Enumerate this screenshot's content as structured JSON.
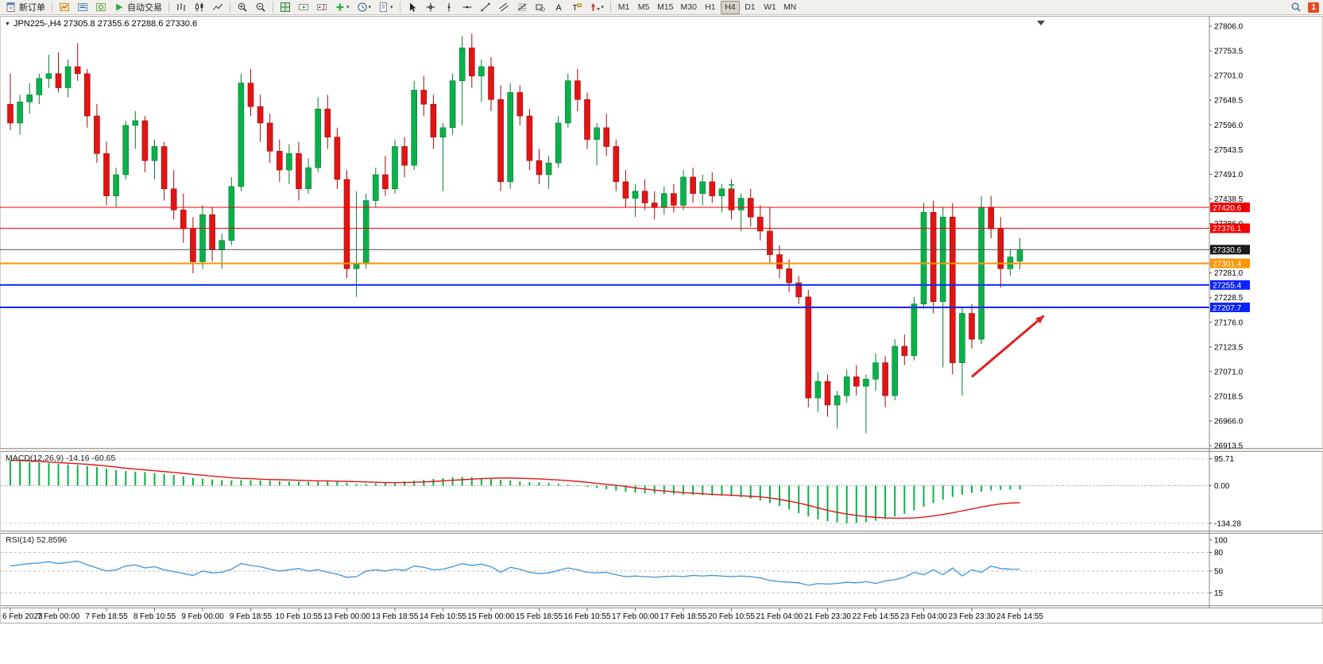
{
  "toolbar": {
    "new_order_label": "新订单",
    "auto_trading_label": "自动交易",
    "panel_icons": [
      "charts",
      "market-watch",
      "navigator"
    ],
    "chart_type_icons": [
      "bar-chart",
      "candlestick-chart",
      "line-chart"
    ],
    "zoom_icons": [
      "zoom-in",
      "zoom-out"
    ],
    "window_icons": [
      "tile-windows",
      "auto-scroll",
      "chart-shift",
      "add-indicator",
      "periods",
      "templates"
    ],
    "drawing_icons": [
      "cursor",
      "crosshair",
      "vertical-line",
      "horizontal-line",
      "trendline",
      "equidistant-channel",
      "fibonacci",
      "shapes",
      "text",
      "text-label",
      "arrows"
    ],
    "dropdown_icons": [
      "add-indicator",
      "periods",
      "templates",
      "arrows"
    ],
    "timeframes": [
      "M1",
      "M5",
      "M15",
      "M30",
      "H1",
      "H4",
      "D1",
      "W1",
      "MN"
    ],
    "active_timeframe": "H4",
    "right_icons": [
      "search"
    ],
    "notification_count": "1"
  },
  "chart_data": {
    "type": "candlestick",
    "symbol": "JPN225-",
    "timeframe": "H4",
    "title_text": "JPN225-,H4 27305.8 27355.6 27288.6 27330.6",
    "ohlc": {
      "open": 27305.8,
      "high": 27355.6,
      "low": 27288.6,
      "close": 27330.6
    },
    "price_axis_ticks": [
      "27806.0",
      "27753.5",
      "27701.0",
      "27648.5",
      "27596.0",
      "27543.5",
      "27491.0",
      "27438.5",
      "27386.0",
      "27333.5",
      "27281.0",
      "27228.5",
      "27176.0",
      "27123.5",
      "27071.0",
      "27018.5",
      "26966.0",
      "26913.5"
    ],
    "time_axis_labels": [
      "6 Feb 2023",
      "7 Feb 00:00",
      "7 Feb 18:55",
      "8 Feb 10:55",
      "9 Feb 00:00",
      "9 Feb 18:55",
      "10 Feb 10:55",
      "13 Feb 00:00",
      "13 Feb 18:55",
      "14 Feb 10:55",
      "15 Feb 00:00",
      "15 Feb 18:55",
      "16 Feb 10:55",
      "17 Feb 00:00",
      "17 Feb 18:55",
      "20 Feb 10:55",
      "21 Feb 04:00",
      "21 Feb 23:30",
      "22 Feb 14:55",
      "23 Feb 04:00",
      "23 Feb 23:30",
      "24 Feb 14:55"
    ],
    "hlines": [
      {
        "price": 27420.6,
        "label": "27420.6",
        "color": "#f20000",
        "tag_bg": "#f20000",
        "width": 1
      },
      {
        "price": 27376.1,
        "label": "27376.1",
        "color": "#f20000",
        "tag_bg": "#f20000",
        "width": 1
      },
      {
        "price": 27330.6,
        "label": "27330.6",
        "color": "#4d4d4d",
        "tag_bg": "#1a1a1a",
        "width": 1,
        "role": "current-price"
      },
      {
        "price": 27301.4,
        "label": "27301.4",
        "color": "#ff9500",
        "tag_bg": "#ff9500",
        "width": 2
      },
      {
        "price": 27255.4,
        "label": "27255.4",
        "color": "#0b24fb",
        "tag_bg": "#0b24fb",
        "width": 2
      },
      {
        "price": 27207.7,
        "label": "27207.7",
        "color": "#0b24fb",
        "tag_bg": "#0b24fb",
        "width": 2
      }
    ],
    "candles": [
      [
        27640,
        27705,
        27585,
        27600
      ],
      [
        27600,
        27660,
        27575,
        27645
      ],
      [
        27645,
        27685,
        27620,
        27660
      ],
      [
        27660,
        27705,
        27640,
        27695
      ],
      [
        27695,
        27745,
        27675,
        27705
      ],
      [
        27705,
        27750,
        27665,
        27675
      ],
      [
        27675,
        27735,
        27655,
        27720
      ],
      [
        27720,
        27770,
        27690,
        27705
      ],
      [
        27705,
        27715,
        27590,
        27615
      ],
      [
        27615,
        27640,
        27515,
        27535
      ],
      [
        27535,
        27560,
        27425,
        27445
      ],
      [
        27445,
        27505,
        27420,
        27490
      ],
      [
        27490,
        27605,
        27480,
        27595
      ],
      [
        27595,
        27625,
        27545,
        27605
      ],
      [
        27605,
        27615,
        27495,
        27520
      ],
      [
        27520,
        27565,
        27480,
        27550
      ],
      [
        27550,
        27560,
        27435,
        27460
      ],
      [
        27460,
        27500,
        27395,
        27415
      ],
      [
        27415,
        27450,
        27345,
        27375
      ],
      [
        27375,
        27400,
        27280,
        27305
      ],
      [
        27305,
        27425,
        27290,
        27405
      ],
      [
        27405,
        27420,
        27305,
        27330
      ],
      [
        27330,
        27365,
        27290,
        27350
      ],
      [
        27350,
        27485,
        27340,
        27465
      ],
      [
        27465,
        27705,
        27455,
        27685
      ],
      [
        27685,
        27715,
        27615,
        27635
      ],
      [
        27635,
        27660,
        27560,
        27600
      ],
      [
        27600,
        27620,
        27515,
        27540
      ],
      [
        27540,
        27565,
        27475,
        27500
      ],
      [
        27500,
        27555,
        27470,
        27535
      ],
      [
        27535,
        27560,
        27435,
        27460
      ],
      [
        27460,
        27525,
        27450,
        27505
      ],
      [
        27505,
        27655,
        27495,
        27630
      ],
      [
        27630,
        27660,
        27545,
        27570
      ],
      [
        27570,
        27590,
        27460,
        27480
      ],
      [
        27480,
        27500,
        27270,
        27290
      ],
      [
        27290,
        27455,
        27230,
        27300
      ],
      [
        27300,
        27450,
        27290,
        27435
      ],
      [
        27435,
        27505,
        27420,
        27490
      ],
      [
        27490,
        27530,
        27445,
        27460
      ],
      [
        27460,
        27565,
        27450,
        27550
      ],
      [
        27550,
        27570,
        27485,
        27510
      ],
      [
        27510,
        27690,
        27500,
        27670
      ],
      [
        27670,
        27700,
        27615,
        27640
      ],
      [
        27640,
        27660,
        27545,
        27570
      ],
      [
        27570,
        27600,
        27455,
        27590
      ],
      [
        27590,
        27705,
        27575,
        27690
      ],
      [
        27690,
        27785,
        27595,
        27760
      ],
      [
        27760,
        27790,
        27675,
        27700
      ],
      [
        27700,
        27735,
        27645,
        27720
      ],
      [
        27720,
        27740,
        27625,
        27650
      ],
      [
        27650,
        27680,
        27455,
        27475
      ],
      [
        27475,
        27685,
        27460,
        27665
      ],
      [
        27665,
        27680,
        27595,
        27615
      ],
      [
        27615,
        27630,
        27500,
        27520
      ],
      [
        27520,
        27545,
        27470,
        27490
      ],
      [
        27490,
        27530,
        27460,
        27515
      ],
      [
        27515,
        27615,
        27505,
        27600
      ],
      [
        27600,
        27705,
        27590,
        27690
      ],
      [
        27690,
        27715,
        27625,
        27650
      ],
      [
        27650,
        27665,
        27545,
        27565
      ],
      [
        27565,
        27600,
        27510,
        27590
      ],
      [
        27590,
        27620,
        27530,
        27550
      ],
      [
        27550,
        27565,
        27455,
        27475
      ],
      [
        27475,
        27500,
        27420,
        27440
      ],
      [
        27440,
        27470,
        27400,
        27455
      ],
      [
        27455,
        27480,
        27415,
        27430
      ],
      [
        27430,
        27455,
        27395,
        27420
      ],
      [
        27420,
        27465,
        27405,
        27450
      ],
      [
        27450,
        27470,
        27410,
        27425
      ],
      [
        27425,
        27500,
        27415,
        27485
      ],
      [
        27485,
        27505,
        27430,
        27450
      ],
      [
        27450,
        27490,
        27425,
        27475
      ],
      [
        27475,
        27495,
        27430,
        27445
      ],
      [
        27445,
        27470,
        27410,
        27460
      ],
      [
        27460,
        27480,
        27395,
        27415
      ],
      [
        27415,
        27450,
        27370,
        27440
      ],
      [
        27440,
        27460,
        27380,
        27400
      ],
      [
        27400,
        27425,
        27350,
        27370
      ],
      [
        27370,
        27420,
        27300,
        27320
      ],
      [
        27320,
        27340,
        27270,
        27290
      ],
      [
        27290,
        27310,
        27240,
        27260
      ],
      [
        27260,
        27275,
        27215,
        27230
      ],
      [
        27230,
        27245,
        26995,
        27015
      ],
      [
        27015,
        27070,
        26985,
        27050
      ],
      [
        27050,
        27065,
        26975,
        27000
      ],
      [
        27000,
        27030,
        26950,
        27020
      ],
      [
        27020,
        27075,
        27005,
        27060
      ],
      [
        27060,
        27085,
        27020,
        27040
      ],
      [
        27040,
        27065,
        26940,
        27055
      ],
      [
        27055,
        27110,
        27030,
        27090
      ],
      [
        27090,
        27105,
        26995,
        27020
      ],
      [
        27020,
        27140,
        27010,
        27125
      ],
      [
        27125,
        27150,
        27085,
        27105
      ],
      [
        27105,
        27230,
        27095,
        27215
      ],
      [
        27215,
        27430,
        27205,
        27410
      ],
      [
        27410,
        27435,
        27195,
        27220
      ],
      [
        27220,
        27420,
        27080,
        27400
      ],
      [
        27400,
        27430,
        27065,
        27090
      ],
      [
        27090,
        27210,
        27020,
        27195
      ],
      [
        27195,
        27215,
        27120,
        27140
      ],
      [
        27140,
        27445,
        27130,
        27420
      ],
      [
        27420,
        27445,
        27355,
        27375
      ],
      [
        27375,
        27400,
        27250,
        27290
      ],
      [
        27290,
        27330,
        27275,
        27315
      ],
      [
        27305.8,
        27355.6,
        27288.6,
        27330.6
      ]
    ],
    "macd": {
      "label_text": "MACD(12,26,9) -14.16 -60.65",
      "name": "MACD(12,26,9)",
      "main_value": -14.16,
      "signal_value": -60.65,
      "axis_ticks": [
        "95.71",
        "0.00",
        "-134.28"
      ],
      "histogram": [
        88,
        86,
        84,
        82,
        80,
        78,
        76,
        74,
        70,
        66,
        60,
        55,
        52,
        50,
        48,
        45,
        42,
        38,
        33,
        28,
        25,
        22,
        20,
        19,
        20,
        20,
        19,
        18,
        16,
        15,
        14,
        14,
        15,
        16,
        14,
        10,
        6,
        6,
        8,
        10,
        12,
        15,
        18,
        21,
        24,
        27,
        30,
        31,
        30,
        27,
        24,
        21,
        18,
        15,
        13,
        12,
        10,
        7,
        4,
        0,
        -4,
        -8,
        -13,
        -18,
        -22,
        -25,
        -27,
        -28,
        -30,
        -31,
        -32,
        -33,
        -34,
        -35,
        -36,
        -38,
        -41,
        -46,
        -53,
        -62,
        -72,
        -84,
        -98,
        -110,
        -120,
        -127,
        -131,
        -134,
        -133,
        -130,
        -125,
        -118,
        -110,
        -100,
        -88,
        -75,
        -62,
        -50,
        -40,
        -32,
        -26,
        -21,
        -17,
        -15,
        -14.5,
        -14.16
      ],
      "signal": [
        90,
        89,
        88,
        86,
        84,
        82,
        80,
        78,
        76,
        73,
        70,
        66,
        62,
        59,
        56,
        53,
        50,
        47,
        44,
        40,
        37,
        34,
        31,
        28,
        26,
        25,
        23,
        22,
        21,
        20,
        19,
        18,
        17,
        17,
        16,
        15,
        14,
        13,
        12,
        11,
        11,
        11,
        12,
        13,
        15,
        17,
        19,
        21,
        23,
        25,
        26,
        27,
        27,
        26,
        25,
        24,
        22,
        20,
        18,
        15,
        12,
        8,
        5,
        1,
        -3,
        -8,
        -12,
        -16,
        -19,
        -22,
        -25,
        -27,
        -29,
        -31,
        -33,
        -34,
        -36,
        -38,
        -40,
        -44,
        -49,
        -55,
        -62,
        -70,
        -79,
        -88,
        -95,
        -101,
        -106,
        -110,
        -113,
        -115,
        -116,
        -116,
        -115,
        -112,
        -108,
        -103,
        -97,
        -90,
        -83,
        -76,
        -70,
        -65,
        -62,
        -60.65
      ]
    },
    "rsi": {
      "label_text": "RSI(14) 52.8596",
      "name": "RSI(14)",
      "value": 52.8596,
      "axis_ticks": [
        "100",
        "80",
        "50",
        "15"
      ],
      "levels": [
        80,
        50,
        15
      ],
      "values": [
        58,
        60,
        62,
        63,
        65,
        62,
        64,
        66,
        60,
        55,
        50,
        52,
        58,
        60,
        55,
        57,
        52,
        49,
        46,
        43,
        50,
        47,
        48,
        53,
        62,
        59,
        57,
        53,
        50,
        52,
        54,
        50,
        52,
        48,
        45,
        40,
        41,
        50,
        52,
        50,
        53,
        51,
        58,
        56,
        52,
        53,
        57,
        62,
        59,
        61,
        57,
        48,
        56,
        53,
        48,
        46,
        47,
        51,
        55,
        52,
        48,
        47,
        48,
        44,
        41,
        42,
        41,
        40,
        41,
        42,
        41,
        43,
        42,
        43,
        42,
        41,
        42,
        41,
        39,
        35,
        33,
        32,
        31,
        27,
        30,
        29,
        30,
        32,
        31,
        33,
        30,
        34,
        36,
        40,
        48,
        44,
        52,
        44,
        55,
        42,
        52,
        48,
        58,
        54,
        53,
        52.86
      ]
    },
    "annotations": {
      "text_marker": {
        "text": "T",
        "color": "#00a040",
        "index": 75,
        "price": 27455
      },
      "trend_arrow": {
        "color": "#e02020",
        "from_index": 100,
        "from_price": 27060,
        "to_index": 107.5,
        "to_price": 27190
      }
    }
  }
}
